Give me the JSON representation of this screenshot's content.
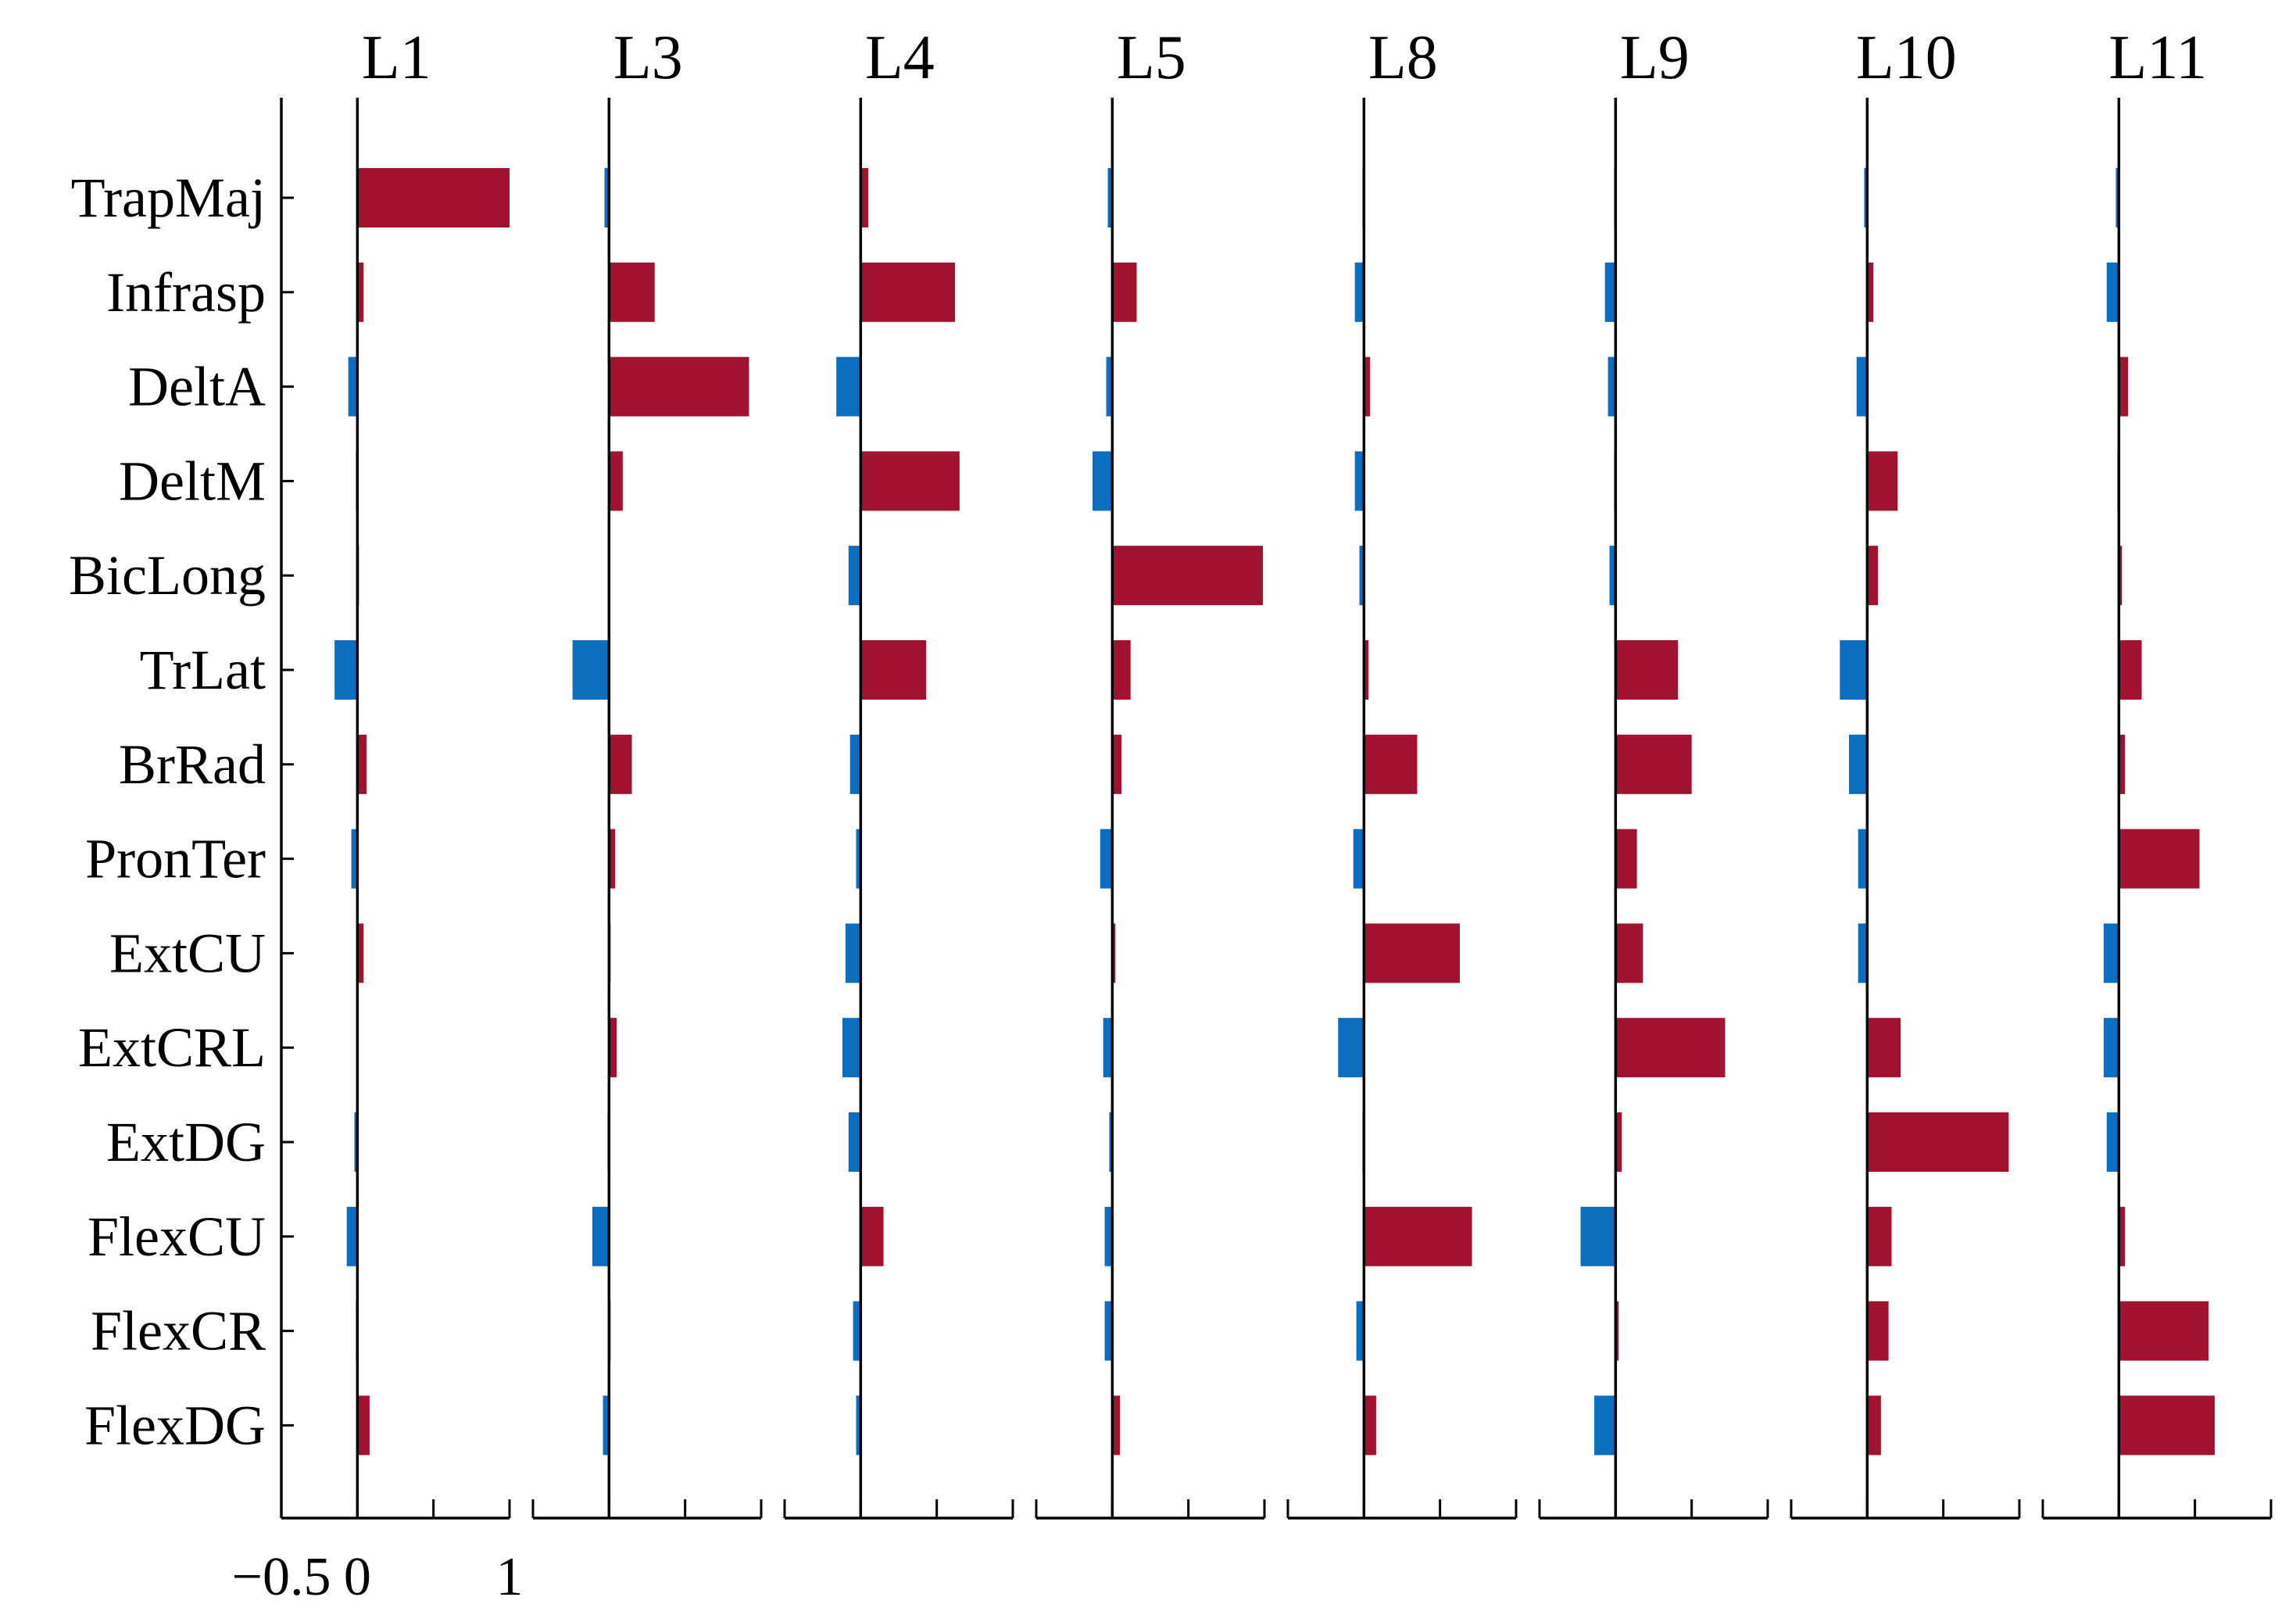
{
  "chart_data": {
    "type": "bar",
    "orientation": "horizontal",
    "layout": "small-multiples",
    "categories": [
      "TrapMaj",
      "Infrasp",
      "DeltA",
      "DeltM",
      "BicLong",
      "TrLat",
      "BrRad",
      "PronTer",
      "ExtCU",
      "ExtCRL",
      "ExtDG",
      "FlexCU",
      "FlexCR",
      "FlexDG"
    ],
    "xlim": [
      -0.5,
      1
    ],
    "xticks": [
      -0.5,
      0,
      0.5,
      1
    ],
    "xtick_labels": [
      "−0.5",
      "0",
      "",
      "1"
    ],
    "colors": {
      "positive": "#A0122E",
      "negative": "#0B6EBE",
      "axis": "#000000"
    },
    "panels": [
      {
        "title": "L1",
        "values": [
          1.0,
          0.04,
          -0.06,
          -0.01,
          0.01,
          -0.15,
          0.06,
          -0.04,
          0.04,
          0.0,
          -0.02,
          -0.07,
          -0.01,
          0.08
        ]
      },
      {
        "title": "L3",
        "values": [
          -0.03,
          0.3,
          0.92,
          0.09,
          0.0,
          -0.24,
          0.15,
          0.04,
          0.01,
          0.05,
          -0.01,
          -0.11,
          0.01,
          -0.04
        ]
      },
      {
        "title": "L4",
        "values": [
          0.05,
          0.62,
          -0.16,
          0.65,
          -0.08,
          0.43,
          -0.07,
          -0.03,
          -0.1,
          -0.12,
          -0.08,
          0.15,
          -0.05,
          -0.03
        ]
      },
      {
        "title": "L5",
        "values": [
          -0.03,
          0.16,
          -0.04,
          -0.13,
          0.99,
          0.12,
          0.06,
          -0.08,
          0.02,
          -0.06,
          -0.02,
          -0.05,
          -0.05,
          0.05
        ]
      },
      {
        "title": "L8",
        "values": [
          -0.01,
          -0.06,
          0.04,
          -0.06,
          -0.03,
          0.03,
          0.35,
          -0.07,
          0.63,
          -0.17,
          -0.01,
          0.71,
          -0.05,
          0.08
        ]
      },
      {
        "title": "L9",
        "values": [
          -0.01,
          -0.07,
          -0.05,
          -0.01,
          -0.04,
          0.41,
          0.5,
          0.14,
          0.18,
          0.72,
          0.04,
          -0.23,
          0.02,
          -0.14
        ]
      },
      {
        "title": "L10",
        "values": [
          -0.02,
          0.04,
          -0.07,
          0.2,
          0.07,
          -0.18,
          -0.12,
          -0.06,
          -0.06,
          0.22,
          0.93,
          0.16,
          0.14,
          0.09
        ]
      },
      {
        "title": "L11",
        "values": [
          -0.02,
          -0.08,
          0.06,
          -0.01,
          0.02,
          0.15,
          0.04,
          0.53,
          -0.1,
          -0.1,
          -0.08,
          0.04,
          0.59,
          0.63
        ]
      }
    ]
  }
}
